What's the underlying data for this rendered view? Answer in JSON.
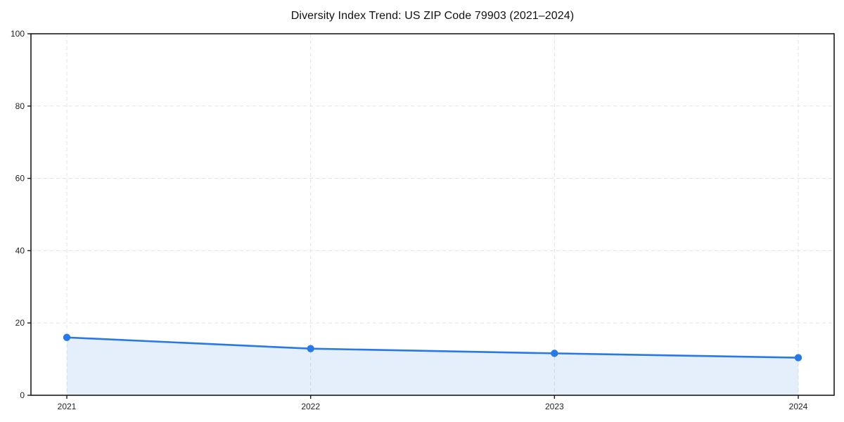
{
  "chart_data": {
    "type": "line",
    "title": "Diversity Index Trend: US ZIP Code 79903 (2021–2024)",
    "x": [
      2021,
      2022,
      2023,
      2024
    ],
    "x_tick_labels": [
      "2021",
      "2022",
      "2023",
      "2024"
    ],
    "series": [
      {
        "name": "Diversity Index",
        "values": [
          16.0,
          12.9,
          11.6,
          10.4
        ]
      }
    ],
    "xlabel": "",
    "ylabel": "",
    "ylim": [
      0,
      100
    ],
    "yticks": [
      0,
      20,
      40,
      60,
      80,
      100
    ],
    "grid": true,
    "grid_style": "dashed",
    "legend_position": "none",
    "colors": {
      "line": "#2878e8",
      "marker": "#2878e8",
      "area_fill": "rgba(40,120,232,0.12)",
      "gridline": "#e3e3e3",
      "spine": "#1a1a1a",
      "tick_label": "#222222",
      "background": "#ffffff"
    }
  }
}
